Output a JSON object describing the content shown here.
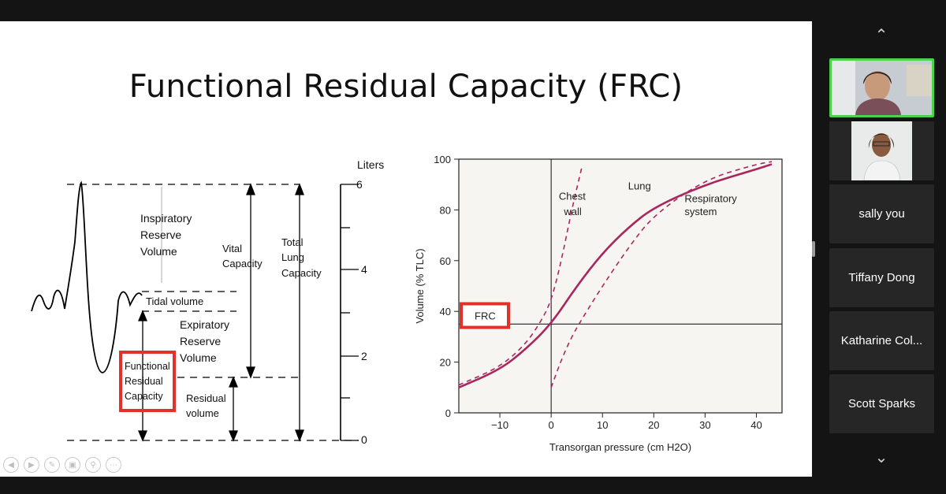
{
  "slide": {
    "title": "Functional Residual Capacity (FRC)",
    "lung_volumes": {
      "units_label": "Liters",
      "ticks": [
        "0",
        "2",
        "4",
        "6"
      ],
      "inspiratory_reserve": [
        "Inspiratory",
        "Reserve",
        "Volume"
      ],
      "tidal_volume": "Tidal volume",
      "expiratory_reserve": [
        "Expiratory",
        "Reserve",
        "Volume"
      ],
      "residual_volume": [
        "Residual",
        "volume"
      ],
      "vital_capacity": [
        "Vital",
        "Capacity"
      ],
      "total_lung_capacity": [
        "Total",
        "Lung",
        "Capacity"
      ],
      "frc_box": [
        "Functional",
        "Residual",
        "Capacity"
      ]
    },
    "frc_chart": {
      "ylabel": "Volume (% TLC)",
      "xlabel": "Transorgan pressure (cm H2O)",
      "x_ticks": [
        "−10",
        "0",
        "10",
        "20",
        "30",
        "40"
      ],
      "y_ticks": [
        "0",
        "20",
        "40",
        "60",
        "80",
        "100"
      ],
      "labels": {
        "chest_wall": [
          "Chest",
          "wall"
        ],
        "lung": "Lung",
        "respiratory_system": [
          "Respiratory",
          "system"
        ],
        "frc": "FRC"
      }
    }
  },
  "chart_data": {
    "type": "line",
    "xlabel": "Transorgan pressure (cm H2O)",
    "ylabel": "Volume (% TLC)",
    "xlim": [
      -18,
      45
    ],
    "ylim": [
      0,
      100
    ],
    "series": [
      {
        "name": "Chest wall",
        "style": "dashed",
        "x": [
          -18,
          -10,
          -5,
          -2,
          0,
          2,
          4,
          6
        ],
        "y": [
          11,
          18,
          27,
          36,
          44,
          60,
          80,
          97
        ]
      },
      {
        "name": "Lung",
        "style": "dashed",
        "x": [
          0,
          2,
          4,
          6,
          10,
          15,
          20,
          30,
          40,
          43
        ],
        "y": [
          10,
          21,
          30,
          37,
          50,
          65,
          78,
          92,
          98,
          99
        ]
      },
      {
        "name": "Respiratory system",
        "style": "solid",
        "x": [
          -18,
          -10,
          -5,
          0,
          5,
          10,
          15,
          20,
          30,
          40,
          43
        ],
        "y": [
          10,
          17,
          25,
          35,
          50,
          63,
          73,
          81,
          90,
          96,
          98
        ]
      }
    ],
    "frc_line_y": 35,
    "colors": {
      "curve": "#a8285e",
      "frc_box": "#e2302a"
    }
  },
  "toolbar": {
    "tools": [
      "prev-icon",
      "next-icon",
      "pen-icon",
      "slides-icon",
      "zoom-icon",
      "more-icon"
    ]
  },
  "participants": [
    {
      "name": "",
      "type": "video",
      "active": true
    },
    {
      "name": "",
      "type": "video",
      "active": false
    },
    {
      "name": "sally you",
      "type": "name"
    },
    {
      "name": "Tiffany Dong",
      "type": "name"
    },
    {
      "name": "Katharine Col...",
      "type": "name"
    },
    {
      "name": "Scott Sparks",
      "type": "name"
    }
  ],
  "colors": {
    "background": "#141414",
    "tile": "#262626",
    "active_speaker": "#4cd14a"
  }
}
